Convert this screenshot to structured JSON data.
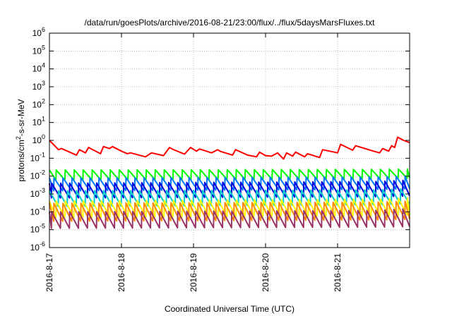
{
  "chart_data": {
    "type": "line",
    "title": "/data/run/goesPlots/archive/2016-08-21/23:00/flux/../flux/5daysMarsFluxes.txt",
    "xlabel": "Coordinated Universal Time (UTC)",
    "ylabel": "protons/cm2-s-sr-MeV",
    "y_scale": "log",
    "ylim": [
      1e-06,
      1000000.0
    ],
    "y_ticks": [
      {
        "exp": "-6",
        "value": 1e-06
      },
      {
        "exp": "-5",
        "value": 1e-05
      },
      {
        "exp": "-4",
        "value": 0.0001
      },
      {
        "exp": "-3",
        "value": 0.001
      },
      {
        "exp": "-2",
        "value": 0.01
      },
      {
        "exp": "-1",
        "value": 0.1
      },
      {
        "exp": "0",
        "value": 1
      },
      {
        "exp": "1",
        "value": 10
      },
      {
        "exp": "2",
        "value": 100
      },
      {
        "exp": "3",
        "value": 1000
      },
      {
        "exp": "4",
        "value": 10000
      },
      {
        "exp": "5",
        "value": 100000
      },
      {
        "exp": "6",
        "value": 1000000
      }
    ],
    "xlim": [
      "2016-08-17",
      "2016-08-22"
    ],
    "x_ticks": [
      {
        "label": "2016-8-17",
        "value": "2016-08-17"
      },
      {
        "label": "2016-8-18",
        "value": "2016-08-18"
      },
      {
        "label": "2016-8-19",
        "value": "2016-08-19"
      },
      {
        "label": "2016-8-20",
        "value": "2016-08-20"
      },
      {
        "label": "2016-8-21",
        "value": "2016-08-21"
      }
    ],
    "grid": true,
    "legend": "none",
    "series": [
      {
        "color": "#ff0000",
        "x": [
          "2016-08-17 00:00",
          "2016-08-17 03:00",
          "2016-08-17 04:00",
          "2016-08-17 09:00",
          "2016-08-17 10:00",
          "2016-08-17 12:00",
          "2016-08-17 13:00",
          "2016-08-17 17:00",
          "2016-08-17 18:00",
          "2016-08-17 20:00",
          "2016-08-17 21:00",
          "2016-08-18 00:00",
          "2016-08-18 02:00",
          "2016-08-18 03:00",
          "2016-08-18 08:00",
          "2016-08-18 10:00",
          "2016-08-18 14:00",
          "2016-08-18 16:00",
          "2016-08-18 17:00",
          "2016-08-18 21:00",
          "2016-08-18 23:00",
          "2016-08-19 01:00",
          "2016-08-19 02:00",
          "2016-08-19 06:00",
          "2016-08-19 08:00",
          "2016-08-19 09:00",
          "2016-08-19 13:00",
          "2016-08-19 14:00",
          "2016-08-19 18:00",
          "2016-08-19 21:00",
          "2016-08-19 22:00",
          "2016-08-20 00:00",
          "2016-08-20 02:00",
          "2016-08-20 04:00",
          "2016-08-20 06:00",
          "2016-08-20 07:00",
          "2016-08-20 09:00",
          "2016-08-20 10:00",
          "2016-08-20 13:00",
          "2016-08-20 14:00",
          "2016-08-20 18:00",
          "2016-08-20 19:00",
          "2016-08-21 00:00",
          "2016-08-21 01:00",
          "2016-08-21 05:00",
          "2016-08-21 06:00",
          "2016-08-21 12:00",
          "2016-08-21 14:00",
          "2016-08-21 15:00",
          "2016-08-21 17:00",
          "2016-08-21 18:00",
          "2016-08-21 19:00",
          "2016-08-21 20:00",
          "2016-08-21 22:00",
          "2016-08-22 00:00"
        ],
        "values": [
          1.0,
          0.3,
          0.35,
          0.15,
          0.3,
          0.2,
          0.4,
          0.18,
          0.45,
          0.35,
          0.45,
          0.25,
          0.18,
          0.2,
          0.12,
          0.2,
          0.14,
          0.4,
          0.32,
          0.17,
          0.4,
          0.25,
          0.33,
          0.2,
          0.3,
          0.24,
          0.15,
          0.3,
          0.15,
          0.12,
          0.22,
          0.14,
          0.13,
          0.2,
          0.09,
          0.2,
          0.13,
          0.22,
          0.12,
          0.18,
          0.11,
          0.3,
          0.2,
          0.6,
          0.28,
          0.5,
          0.25,
          0.2,
          0.35,
          0.25,
          0.5,
          0.4,
          1.5,
          1.0,
          0.75
        ]
      },
      {
        "color": "#00ff00",
        "x": [
          "2016-08-17 00:00",
          "2016-08-21 12:00",
          "2016-08-22 00:00"
        ],
        "period_hours": 3,
        "peaks": [
          0.022,
          0.024,
          0.025
        ],
        "troughs": [
          0.006,
          0.007,
          0.008
        ]
      },
      {
        "color": "#0077ff",
        "x": [
          "2016-08-17 00:00",
          "2016-08-21 12:00",
          "2016-08-22 00:00"
        ],
        "period_hours": 3,
        "peaks": [
          0.008,
          0.009,
          0.01
        ],
        "troughs": [
          0.0015,
          0.0018,
          0.002
        ]
      },
      {
        "color": "#0000dd",
        "x": [
          "2016-08-17 00:00",
          "2016-08-21 12:00",
          "2016-08-22 00:00"
        ],
        "period_hours": 3,
        "peaks": [
          0.004,
          0.005,
          0.006
        ],
        "troughs": [
          0.0006,
          0.0007,
          0.0008
        ]
      },
      {
        "color": "#00cccc",
        "x": [
          "2016-08-17 00:00",
          "2016-08-21 12:00",
          "2016-08-22 00:00"
        ],
        "period_hours": 3,
        "peaks": [
          0.0015,
          0.0017,
          0.002
        ],
        "troughs": [
          0.0002,
          0.00025,
          0.0003
        ]
      },
      {
        "color": "#ffff00",
        "x": [
          "2016-08-17 00:00",
          "2016-08-21 12:00",
          "2016-08-22 00:00"
        ],
        "period_hours": 3,
        "peaks": [
          0.0004,
          0.0005,
          0.0006
        ],
        "troughs": [
          5e-05,
          6e-05,
          7e-05
        ]
      },
      {
        "color": "#ff8800",
        "x": [
          "2016-08-17 00:00",
          "2016-08-21 12:00",
          "2016-08-22 00:00"
        ],
        "period_hours": 3,
        "peaks": [
          0.0003,
          0.00035,
          0.0004
        ],
        "troughs": [
          3e-05,
          3.5e-05,
          4e-05
        ]
      },
      {
        "color": "#993366",
        "x": [
          "2016-08-17 00:00",
          "2016-08-21 12:00",
          "2016-08-22 00:00"
        ],
        "period_hours": 3,
        "peaks": [
          0.0001,
          0.00012,
          0.00015
        ],
        "troughs": [
          1.2e-05,
          1.4e-05,
          1.5e-05
        ]
      }
    ]
  }
}
